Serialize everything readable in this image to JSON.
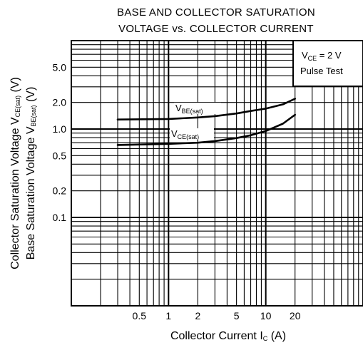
{
  "chart_data": {
    "type": "line",
    "title": [
      "BASE AND COLLECTOR SATURATION",
      "VOLTAGE vs. COLLECTOR CURRENT"
    ],
    "xlabel": {
      "main": "Collector Current  I",
      "sub": "C",
      "unit": "  (A)"
    },
    "ylabel_lines": [
      {
        "main": "Collector Saturation Voltage  V",
        "sub": "CE(sat)",
        "unit": "  (V)"
      },
      {
        "main": "Base Saturation Voltage  V",
        "sub": "BE(sat)",
        "unit": "  (V)"
      }
    ],
    "x_scale": "log",
    "y_scale": "log",
    "xlim": [
      0.1,
      100
    ],
    "ylim": [
      0.01,
      10
    ],
    "x_ticks": [
      {
        "value": 0.5,
        "label": "0.5"
      },
      {
        "value": 1,
        "label": "1"
      },
      {
        "value": 2,
        "label": "2"
      },
      {
        "value": 5,
        "label": "5"
      },
      {
        "value": 10,
        "label": "10"
      },
      {
        "value": 20,
        "label": "20"
      }
    ],
    "y_ticks": [
      {
        "value": 5,
        "label": "5.0"
      },
      {
        "value": 2,
        "label": "2.0"
      },
      {
        "value": 1,
        "label": "1.0"
      },
      {
        "value": 0.5,
        "label": "0.5"
      },
      {
        "value": 0.2,
        "label": "0.2"
      },
      {
        "value": 0.1,
        "label": "0.1"
      }
    ],
    "grid": true,
    "legend_box": {
      "position": "top-right",
      "line1_main": "V",
      "line1_sub": "CE",
      "line1_rest": " = 2 V",
      "line2": "Pulse Test"
    },
    "series": [
      {
        "name_main": "V",
        "name_sub": "BE(sat)",
        "x": [
          0.3,
          1,
          2,
          3,
          5,
          7,
          10,
          15,
          20
        ],
        "y": [
          1.28,
          1.3,
          1.35,
          1.4,
          1.5,
          1.6,
          1.7,
          1.9,
          2.2
        ]
      },
      {
        "name_main": "V",
        "name_sub": "CE(sat)",
        "x": [
          0.3,
          1,
          2,
          3,
          5,
          7,
          10,
          15,
          20
        ],
        "y": [
          0.66,
          0.68,
          0.7,
          0.73,
          0.79,
          0.85,
          0.95,
          1.15,
          1.45
        ]
      }
    ]
  }
}
